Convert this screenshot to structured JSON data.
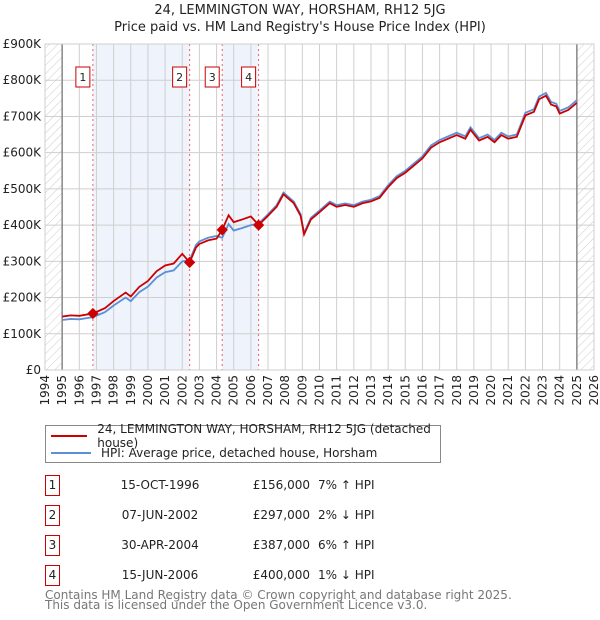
{
  "chart_data": {
    "type": "line",
    "title": "24, LEMMINGTON WAY, HORSHAM, RH12 5JG",
    "subtitle": "Price paid vs. HM Land Registry's House Price Index (HPI)",
    "xlim": [
      1994,
      2026
    ],
    "ylim": [
      0,
      900000
    ],
    "x_ticks": [
      "1994",
      "1995",
      "1996",
      "1997",
      "1998",
      "1999",
      "2000",
      "2001",
      "2002",
      "2003",
      "2004",
      "2005",
      "2006",
      "2007",
      "2008",
      "2009",
      "2010",
      "2011",
      "2012",
      "2013",
      "2014",
      "2015",
      "2016",
      "2017",
      "2018",
      "2019",
      "2020",
      "2021",
      "2022",
      "2023",
      "2024",
      "2025",
      "2026"
    ],
    "y_ticks": [
      {
        "value": 0,
        "label": "£0"
      },
      {
        "value": 100000,
        "label": "£100K"
      },
      {
        "value": 200000,
        "label": "£200K"
      },
      {
        "value": 300000,
        "label": "£300K"
      },
      {
        "value": 400000,
        "label": "£400K"
      },
      {
        "value": 500000,
        "label": "£500K"
      },
      {
        "value": 600000,
        "label": "£600K"
      },
      {
        "value": 700000,
        "label": "£700K"
      },
      {
        "value": 800000,
        "label": "£800K"
      },
      {
        "value": 900000,
        "label": "£900K"
      }
    ],
    "grid": true,
    "data_range": [
      1995,
      2025
    ],
    "hpi_series": {
      "name": "HPI: Average price, detached house, Horsham",
      "color": "#5b8fd6",
      "x": [
        1995.0,
        1995.5,
        1996.0,
        1996.8,
        1997.5,
        1998.0,
        1998.7,
        1999.0,
        1999.5,
        2000.0,
        2000.5,
        2001.0,
        2001.5,
        2002.0,
        2002.43,
        2002.8,
        2003.0,
        2003.5,
        2004.0,
        2004.33,
        2004.7,
        2005.0,
        2005.5,
        2006.0,
        2006.45,
        2007.0,
        2007.5,
        2007.9,
        2008.5,
        2008.9,
        2009.1,
        2009.5,
        2010.0,
        2010.6,
        2011.0,
        2011.5,
        2012.0,
        2012.5,
        2013.0,
        2013.5,
        2014.0,
        2014.5,
        2015.0,
        2015.5,
        2016.0,
        2016.5,
        2017.0,
        2017.5,
        2018.0,
        2018.5,
        2018.8,
        2019.3,
        2019.8,
        2020.2,
        2020.6,
        2021.0,
        2021.5,
        2022.0,
        2022.5,
        2022.8,
        2023.2,
        2023.5,
        2023.8,
        2024.0,
        2024.5,
        2025.0
      ],
      "y": [
        138000,
        141000,
        140000,
        146000,
        160000,
        178000,
        200000,
        190000,
        215000,
        230000,
        255000,
        270000,
        275000,
        300000,
        303000,
        345000,
        355000,
        365000,
        370000,
        365000,
        403000,
        385000,
        392000,
        400000,
        404000,
        430000,
        455000,
        490000,
        465000,
        430000,
        378000,
        420000,
        440000,
        465000,
        455000,
        460000,
        455000,
        465000,
        470000,
        480000,
        510000,
        535000,
        550000,
        570000,
        590000,
        620000,
        635000,
        645000,
        655000,
        645000,
        670000,
        640000,
        650000,
        635000,
        655000,
        645000,
        650000,
        710000,
        720000,
        755000,
        765000,
        740000,
        735000,
        715000,
        725000,
        745000
      ]
    },
    "property_series": {
      "name": "24, LEMMINGTON WAY, HORSHAM, RH12 5JG (detached house)",
      "color": "#cc0000"
    },
    "sales": [
      {
        "n": "1",
        "x": 1996.79,
        "date": "15-OCT-1996",
        "price": 156000,
        "price_label": "£156,000",
        "hpi_label": "7% ↑ HPI"
      },
      {
        "n": "2",
        "x": 2002.43,
        "date": "07-JUN-2002",
        "price": 297000,
        "price_label": "£297,000",
        "hpi_label": "2% ↓ HPI"
      },
      {
        "n": "3",
        "x": 2004.33,
        "date": "30-APR-2004",
        "price": 387000,
        "price_label": "£387,000",
        "hpi_label": "6% ↑ HPI"
      },
      {
        "n": "4",
        "x": 2006.45,
        "date": "15-JUN-2006",
        "price": 400000,
        "price_label": "£400,000",
        "hpi_label": "1% ↓ HPI"
      }
    ],
    "shaded_ranges": [
      [
        1996.79,
        2002.43
      ],
      [
        2004.33,
        2006.45
      ]
    ]
  },
  "legend": {
    "property": "24, LEMMINGTON WAY, HORSHAM, RH12 5JG (detached house)",
    "hpi": "HPI: Average price, detached house, Horsham"
  },
  "footer": {
    "line1": "Contains HM Land Registry data © Crown copyright and database right 2025.",
    "line2": "This data is licensed under the Open Government Licence v3.0."
  }
}
